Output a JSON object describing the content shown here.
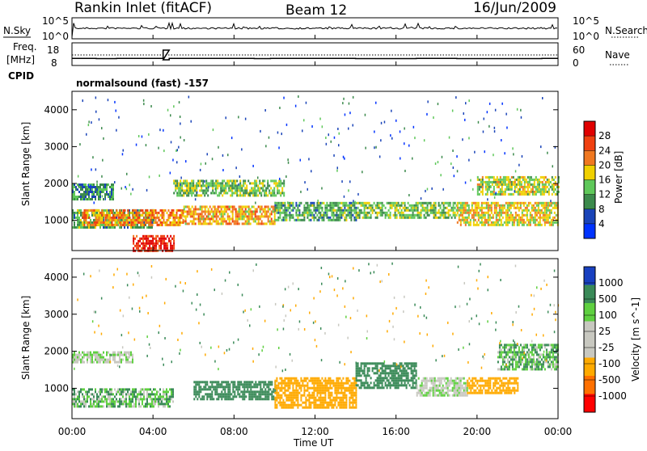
{
  "header": {
    "station": "Rankin Inlet (fitACF)",
    "beam": "Beam 12",
    "date": "16/Jun/2009"
  },
  "panels": {
    "nsky_label": "N.Sky",
    "nsky_ticks": [
      "10^5",
      "10^0"
    ],
    "nsearch_label": "N.Search",
    "nsearch_ticks": [
      "10^5",
      "10^0"
    ],
    "freq_label": "Freq.",
    "freq_unit": "[MHz]",
    "freq_ticks": [
      "18",
      "8"
    ],
    "nave_label": "Nave",
    "nave_ticks": [
      "60",
      "0"
    ],
    "cpid_label": "CPID",
    "cpid_text": "normalsound (fast) -157"
  },
  "colors": {
    "axis": "#000000",
    "power_scale": [
      "#0033ff",
      "#1a44b8",
      "#3c8a4c",
      "#5fc85a",
      "#f0d000",
      "#f07820",
      "#f04010",
      "#e00000"
    ],
    "velocity_scale": [
      "#ff0000",
      "#ff7000",
      "#ffaa00",
      "#c8c8c0",
      "#c8c8c0",
      "#5fd040",
      "#3a8a58",
      "#1840c0"
    ],
    "ground_scatter": "#c8c8c0"
  },
  "chart_data": [
    {
      "type": "heatmap",
      "title": "",
      "ylabel": "Slant Range [km]",
      "xlabel": "",
      "x_ticks": [],
      "y_ticks": [
        "1000",
        "2000",
        "3000",
        "4000"
      ],
      "colorbar": {
        "label": "Power [dB]",
        "tick_labels": [
          "4",
          "8",
          "12",
          "16",
          "20",
          "24",
          "28"
        ]
      },
      "bands": [
        {
          "t0": 0.0,
          "t1": 4.0,
          "r0": 800,
          "r1": 1300,
          "value": 12
        },
        {
          "t0": 0.5,
          "t1": 5.5,
          "r0": 900,
          "r1": 1300,
          "value": 22
        },
        {
          "t0": 3.0,
          "t1": 5.0,
          "r0": 200,
          "r1": 600,
          "value": 28
        },
        {
          "t0": 0.0,
          "t1": 2.0,
          "r0": 1600,
          "r1": 2000,
          "value": 10
        },
        {
          "t0": 5.0,
          "t1": 10.5,
          "r0": 1700,
          "r1": 2100,
          "value": 14
        },
        {
          "t0": 5.5,
          "t1": 10.0,
          "r0": 900,
          "r1": 1400,
          "value": 20
        },
        {
          "t0": 10.0,
          "t1": 14.0,
          "r0": 1000,
          "r1": 1500,
          "value": 12
        },
        {
          "t0": 14.0,
          "t1": 19.0,
          "r0": 1100,
          "r1": 1500,
          "value": 14
        },
        {
          "t0": 19.0,
          "t1": 24.0,
          "r0": 900,
          "r1": 1500,
          "value": 18
        },
        {
          "t0": 20.0,
          "t1": 24.0,
          "r0": 1700,
          "r1": 2200,
          "value": 16
        }
      ]
    },
    {
      "type": "heatmap",
      "title": "",
      "ylabel": "Slant Range [km]",
      "xlabel": "Time UT",
      "x_ticks": [
        "00:00",
        "04:00",
        "08:00",
        "12:00",
        "16:00",
        "20:00",
        "00:00"
      ],
      "y_ticks": [
        "1000",
        "2000",
        "3000",
        "4000"
      ],
      "colorbar": {
        "label": "Velocity [m s^-1]",
        "tick_labels": [
          "1000",
          "500",
          "100",
          "25",
          "-25",
          "-100",
          "-500",
          "-1000"
        ]
      },
      "bands": [
        {
          "t0": 0.0,
          "t1": 3.0,
          "r0": 1700,
          "r1": 2000,
          "value": 0
        },
        {
          "t0": 0.0,
          "t1": 5.0,
          "r0": 500,
          "r1": 1000,
          "value": 80
        },
        {
          "t0": 6.0,
          "t1": 10.0,
          "r0": 700,
          "r1": 1200,
          "value": 300
        },
        {
          "t0": 10.0,
          "t1": 14.0,
          "r0": 500,
          "r1": 1300,
          "value": -300
        },
        {
          "t0": 14.0,
          "t1": 17.0,
          "r0": 1000,
          "r1": 1700,
          "value": 400
        },
        {
          "t0": 17.0,
          "t1": 19.5,
          "r0": 800,
          "r1": 1300,
          "value": 0
        },
        {
          "t0": 19.5,
          "t1": 22.0,
          "r0": 900,
          "r1": 1300,
          "value": -200
        },
        {
          "t0": 21.0,
          "t1": 24.0,
          "r0": 1500,
          "r1": 2200,
          "value": 80
        }
      ]
    }
  ]
}
